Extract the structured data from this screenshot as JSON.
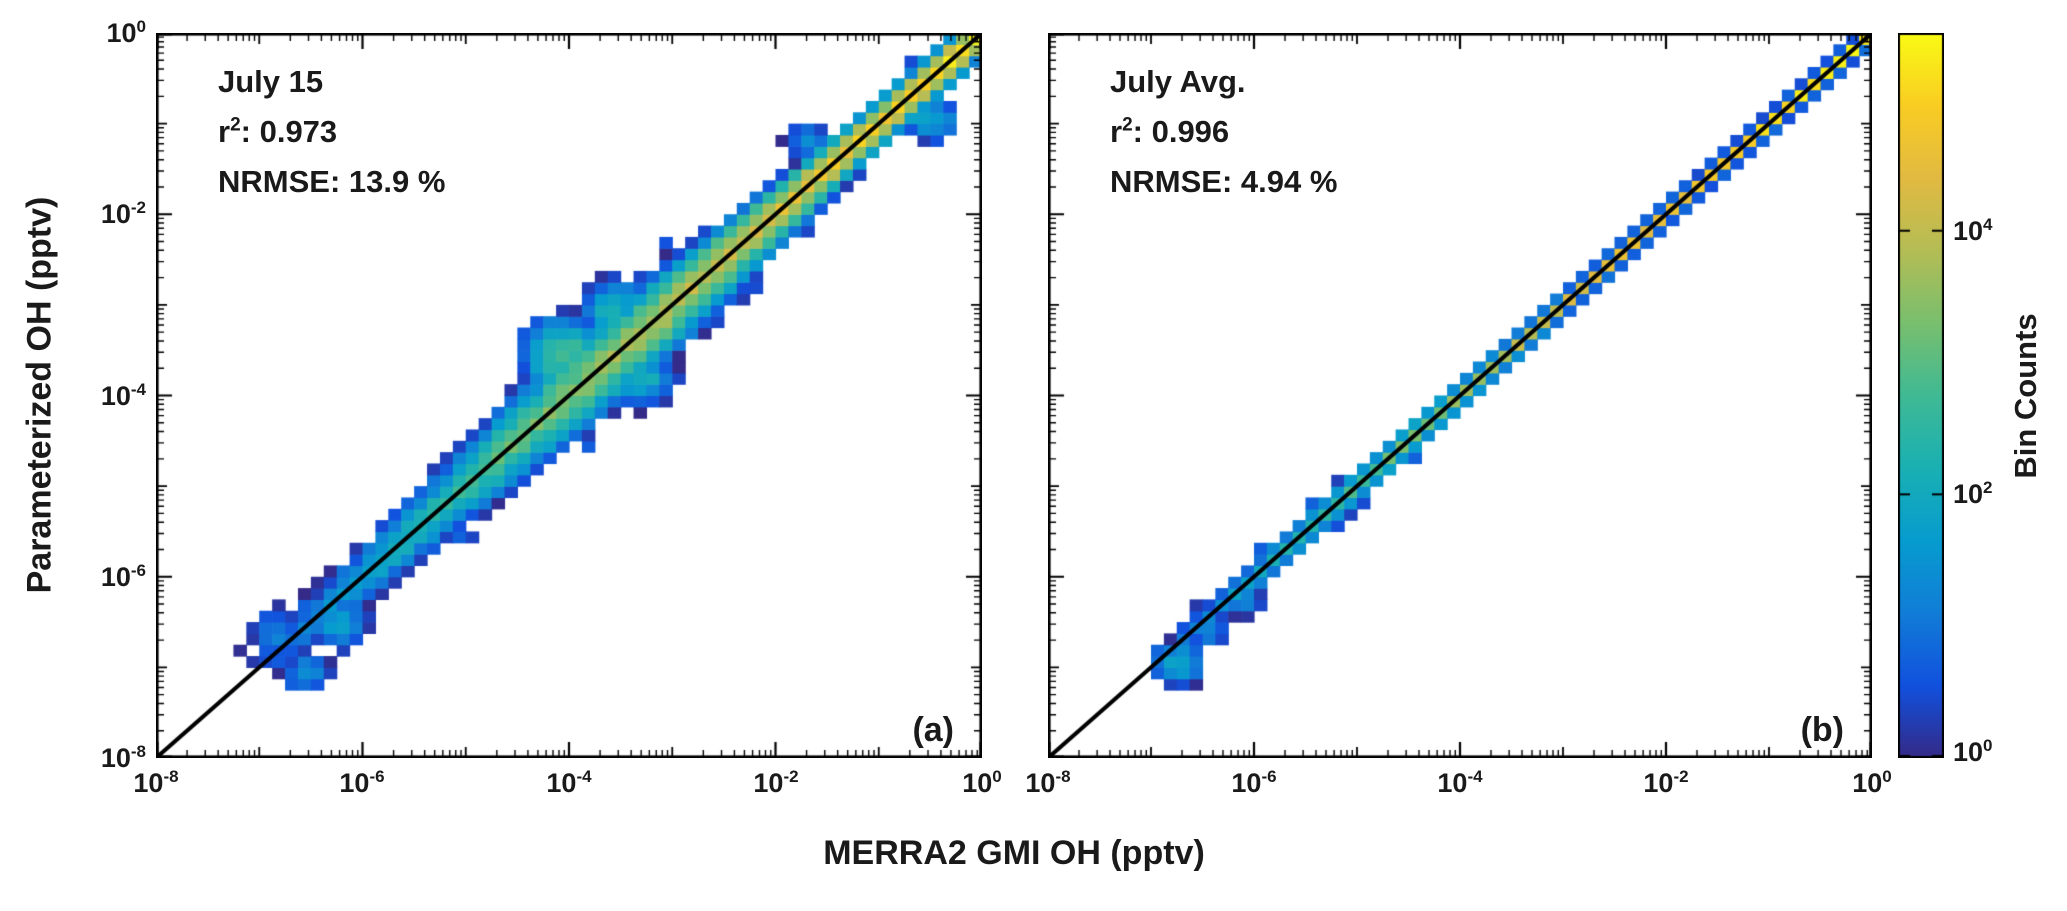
{
  "figure": {
    "background": "#ffffff",
    "text_color": "#1a1a1a",
    "xlabel": "MERRA2 GMI OH (pptv)",
    "ylabel": "Parameterized OH (pptv)"
  },
  "colorbar": {
    "label": "Bin Counts",
    "range_log10": [
      0,
      5.5
    ],
    "tick_exps": [
      4,
      2,
      0
    ],
    "ticks": [
      {
        "base": "10",
        "exp": "4"
      },
      {
        "base": "10",
        "exp": "2"
      },
      {
        "base": "10",
        "exp": "0"
      }
    ],
    "colormap": "parula",
    "stops": [
      [
        0.0,
        "#352A87"
      ],
      [
        0.1,
        "#1151DE"
      ],
      [
        0.2,
        "#117DD7"
      ],
      [
        0.3,
        "#079CCF"
      ],
      [
        0.4,
        "#1AB0B3"
      ],
      [
        0.5,
        "#40BA94"
      ],
      [
        0.6,
        "#79BF6E"
      ],
      [
        0.7,
        "#B4BD55"
      ],
      [
        0.8,
        "#E2BA42"
      ],
      [
        0.9,
        "#F9CD23"
      ],
      [
        1.0,
        "#F9FB14"
      ]
    ]
  },
  "chart_data": [
    {
      "type": "heatmap",
      "description": "2D log-log bin-count density of parameterized OH vs MERRA2 GMI OH for July 15, scattered along the 1:1 identity line",
      "panel_label": "(a)",
      "annotation": {
        "title": "July 15",
        "r2_prefix": "r",
        "r2_sup": "2",
        "r2_value": ": 0.973",
        "nrmse": "NRMSE: 13.9 %"
      },
      "stats": {
        "r2": 0.973,
        "nrmse_percent": 13.9
      },
      "xlabel": "MERRA2 GMI OH (pptv)",
      "ylabel": "Parameterized OH (pptv)",
      "x_range_log10": [
        -8,
        0
      ],
      "y_range_log10": [
        -8,
        0
      ],
      "x_ticks": [
        {
          "base": "10",
          "exp": "-8"
        },
        {
          "base": "10",
          "exp": "-6"
        },
        {
          "base": "10",
          "exp": "-4"
        },
        {
          "base": "10",
          "exp": "-2"
        },
        {
          "base": "10",
          "exp": "0"
        }
      ],
      "y_ticks": [
        {
          "base": "10",
          "exp": "0"
        },
        {
          "base": "10",
          "exp": "-2"
        },
        {
          "base": "10",
          "exp": "-4"
        },
        {
          "base": "10",
          "exp": "-6"
        },
        {
          "base": "10",
          "exp": "-8"
        }
      ],
      "identity_line": true,
      "density_model": {
        "seed": 1234,
        "n_bins": 64,
        "p": 1.4,
        "noise": 0.55,
        "log_count_max": 5.5,
        "w_base": 0.3,
        "w_bump": 0.35,
        "w_center": -3.7,
        "w_width": 1.3,
        "amp_profile": [
          [
            -7.5,
            -2
          ],
          [
            -7.1,
            -0.2
          ],
          [
            -6.8,
            0.9
          ],
          [
            -6.3,
            1.6
          ],
          [
            -5.5,
            2.3
          ],
          [
            -4.5,
            3.1
          ],
          [
            -3.5,
            3.7
          ],
          [
            -2.5,
            4.1
          ],
          [
            -1.5,
            4.6
          ],
          [
            -0.5,
            5.1
          ],
          [
            0,
            5.4
          ]
        ],
        "blobs": [
          {
            "u": -6.55,
            "v": -7.05,
            "r": 0.25,
            "c": 1.6
          },
          {
            "u": -6.85,
            "v": -6.6,
            "r": 0.28,
            "c": 1.3
          },
          {
            "u": -6.2,
            "v": -6.55,
            "r": 0.3,
            "c": 1.8
          },
          {
            "u": -4.05,
            "v": -3.55,
            "r": 0.5,
            "c": 3.0
          },
          {
            "u": -3.55,
            "v": -3.05,
            "r": 0.4,
            "c": 2.3
          },
          {
            "u": -3.3,
            "v": -3.8,
            "r": 0.38,
            "c": 2.2
          },
          {
            "u": -0.5,
            "v": -0.95,
            "r": 0.3,
            "c": 2.0
          },
          {
            "u": -1.7,
            "v": -1.2,
            "r": 0.25,
            "c": 1.3
          }
        ]
      }
    },
    {
      "type": "heatmap",
      "description": "2D log-log bin-count density of parameterized OH vs MERRA2 GMI OH for July average, tightly clustered on the 1:1 identity line",
      "panel_label": "(b)",
      "annotation": {
        "title": "July Avg.",
        "r2_prefix": "r",
        "r2_sup": "2",
        "r2_value": ": 0.996",
        "nrmse": "NRMSE: 4.94 %"
      },
      "stats": {
        "r2": 0.996,
        "nrmse_percent": 4.94
      },
      "xlabel": "MERRA2 GMI OH (pptv)",
      "ylabel": "Parameterized OH (pptv)",
      "x_range_log10": [
        -8,
        0
      ],
      "y_range_log10": [
        -8,
        0
      ],
      "x_ticks": [
        {
          "base": "10",
          "exp": "-8"
        },
        {
          "base": "10",
          "exp": "-6"
        },
        {
          "base": "10",
          "exp": "-4"
        },
        {
          "base": "10",
          "exp": "-2"
        },
        {
          "base": "10",
          "exp": "0"
        }
      ],
      "y_ticks": [],
      "identity_line": true,
      "density_model": {
        "seed": 777,
        "n_bins": 64,
        "p": 1.25,
        "noise": 0.45,
        "log_count_max": 5.5,
        "w_base": 0.14,
        "w_bump": 0.1,
        "w_center": -5.2,
        "w_width": 1.1,
        "amp_profile": [
          [
            -7.3,
            -2
          ],
          [
            -6.9,
            0.6
          ],
          [
            -6.4,
            1.5
          ],
          [
            -5.5,
            2.4
          ],
          [
            -4.5,
            3.2
          ],
          [
            -3.5,
            3.9
          ],
          [
            -2.5,
            4.4
          ],
          [
            -1.5,
            4.8
          ],
          [
            -0.5,
            5.2
          ],
          [
            0,
            5.45
          ]
        ],
        "blobs": [
          {
            "u": -6.75,
            "v": -6.95,
            "r": 0.3,
            "c": 2.0
          },
          {
            "u": -6.45,
            "v": -6.6,
            "r": 0.2,
            "c": 1.4
          },
          {
            "u": -6.1,
            "v": -6.25,
            "r": 0.22,
            "c": 1.6
          }
        ]
      }
    }
  ]
}
